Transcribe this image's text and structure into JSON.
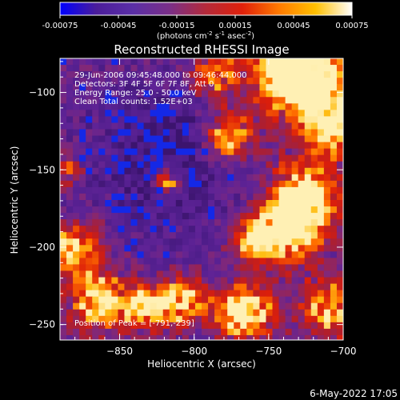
{
  "colorbar": {
    "ticks": [
      "-0.00075",
      "-0.00045",
      "-0.00015",
      "0.00015",
      "0.00045",
      "0.00075"
    ],
    "tick_values": [
      -0.00075,
      -0.00045,
      -0.00015,
      0.00015,
      0.00045,
      0.00075
    ],
    "unit_parts": {
      "pre": "(photons cm",
      "exp1": "-2",
      "mid1": " s",
      "exp2": "-1",
      "mid2": " asec",
      "exp3": "-2",
      "post": ")"
    },
    "colors": [
      "#0000ff",
      "#4b1d9a",
      "#5b2fa6",
      "#7a2f88",
      "#b42a3a",
      "#e0200a",
      "#ff7a00",
      "#ffc000",
      "#ffffff"
    ]
  },
  "chart_data": {
    "type": "heatmap",
    "title": "Reconstructed RHESSI Image",
    "xlabel": "Heliocentric X (arcsec)",
    "ylabel": "Heliocentric Y (arcsec)",
    "xlim": [
      -890,
      -700
    ],
    "ylim": [
      -260,
      -78
    ],
    "xticks": [
      -850,
      -800,
      -750,
      -700
    ],
    "xtick_labels": [
      "−850",
      "−800",
      "−750",
      "−700"
    ],
    "yticks": [
      -100,
      -150,
      -200,
      -250
    ],
    "ytick_labels": [
      "−100",
      "−150",
      "−200",
      "−250"
    ],
    "annotations": [
      "29-Jun-2006 09:45:48.000 to 09:46:44.000",
      "Detectors: 3F 4F 5F 6F 7F 8F, Att 0",
      "Energy Range: 25.0 - 50.0 keV",
      "Clean     Total counts: 1.52E+03"
    ],
    "peak_label": "Position of Peak = [-791,-239]",
    "peak": [
      -791,
      -239
    ]
  },
  "footer": {
    "timestamp": "6-May-2022 17:05"
  }
}
